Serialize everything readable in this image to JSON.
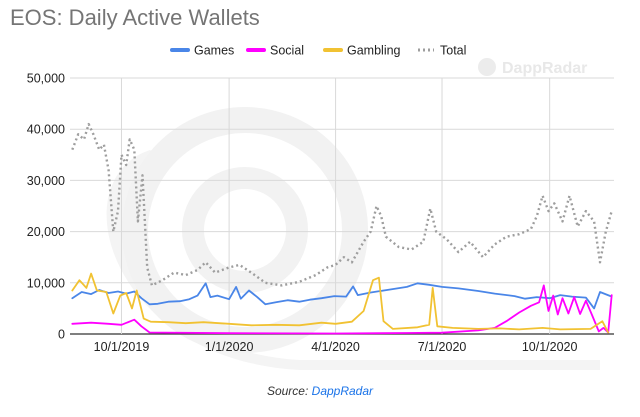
{
  "chart_data": {
    "type": "line",
    "title": "EOS: Daily Active Wallets",
    "watermark": "DappRadar",
    "legend_position": "top",
    "grid": true,
    "ylim": [
      0,
      50000
    ],
    "y_ticks": [
      "0",
      "10,000",
      "20,000",
      "30,000",
      "40,000",
      "50,000"
    ],
    "y_tick_values": [
      0,
      10000,
      20000,
      30000,
      40000,
      50000
    ],
    "xlim": [
      "2019-08-18",
      "2020-11-25"
    ],
    "x_ticks": [
      "10/1/2019",
      "1/1/2020",
      "4/1/2020",
      "7/1/2020",
      "10/1/2020"
    ],
    "x_tick_dates": [
      "2019-10-01",
      "2020-01-01",
      "2020-04-01",
      "2020-07-01",
      "2020-10-01"
    ],
    "series": [
      {
        "name": "Games",
        "color": "#4a86e8",
        "style": "solid",
        "points": [
          [
            "2019-08-20",
            7000
          ],
          [
            "2019-08-28",
            8200
          ],
          [
            "2019-09-05",
            7800
          ],
          [
            "2019-09-12",
            8600
          ],
          [
            "2019-09-20",
            8000
          ],
          [
            "2019-09-28",
            8300
          ],
          [
            "2019-10-05",
            7900
          ],
          [
            "2019-10-12",
            8300
          ],
          [
            "2019-10-18",
            7000
          ],
          [
            "2019-10-25",
            5800
          ],
          [
            "2019-11-01",
            5900
          ],
          [
            "2019-11-10",
            6300
          ],
          [
            "2019-11-20",
            6400
          ],
          [
            "2019-11-28",
            6800
          ],
          [
            "2019-12-05",
            7500
          ],
          [
            "2019-12-12",
            9900
          ],
          [
            "2019-12-16",
            7200
          ],
          [
            "2019-12-22",
            7500
          ],
          [
            "2020-01-01",
            6800
          ],
          [
            "2020-01-07",
            9200
          ],
          [
            "2020-01-11",
            6900
          ],
          [
            "2020-01-18",
            8500
          ],
          [
            "2020-01-25",
            7200
          ],
          [
            "2020-02-01",
            5800
          ],
          [
            "2020-02-10",
            6200
          ],
          [
            "2020-02-20",
            6600
          ],
          [
            "2020-03-01",
            6300
          ],
          [
            "2020-03-10",
            6700
          ],
          [
            "2020-03-20",
            7000
          ],
          [
            "2020-03-31",
            7400
          ],
          [
            "2020-04-10",
            7300
          ],
          [
            "2020-04-16",
            9300
          ],
          [
            "2020-04-20",
            7600
          ],
          [
            "2020-05-01",
            8100
          ],
          [
            "2020-05-15",
            8600
          ],
          [
            "2020-06-01",
            9200
          ],
          [
            "2020-06-10",
            9900
          ],
          [
            "2020-06-20",
            9600
          ],
          [
            "2020-07-01",
            9200
          ],
          [
            "2020-07-15",
            8900
          ],
          [
            "2020-08-01",
            8400
          ],
          [
            "2020-08-15",
            7900
          ],
          [
            "2020-09-01",
            7400
          ],
          [
            "2020-09-10",
            6900
          ],
          [
            "2020-09-20",
            7200
          ],
          [
            "2020-10-01",
            7000
          ],
          [
            "2020-10-10",
            7600
          ],
          [
            "2020-10-20",
            7300
          ],
          [
            "2020-11-01",
            7100
          ],
          [
            "2020-11-08",
            5000
          ],
          [
            "2020-11-13",
            8200
          ],
          [
            "2020-11-22",
            7400
          ]
        ]
      },
      {
        "name": "Social",
        "color": "#ff00ff",
        "style": "solid",
        "points": [
          [
            "2019-08-20",
            2000
          ],
          [
            "2019-09-05",
            2200
          ],
          [
            "2019-09-20",
            2000
          ],
          [
            "2019-10-01",
            1800
          ],
          [
            "2019-10-12",
            2800
          ],
          [
            "2019-10-18",
            1500
          ],
          [
            "2019-10-25",
            300
          ],
          [
            "2020-01-01",
            150
          ],
          [
            "2020-04-01",
            100
          ],
          [
            "2020-06-01",
            200
          ],
          [
            "2020-07-01",
            250
          ],
          [
            "2020-08-01",
            700
          ],
          [
            "2020-08-15",
            1200
          ],
          [
            "2020-08-25",
            2500
          ],
          [
            "2020-09-05",
            4200
          ],
          [
            "2020-09-15",
            5500
          ],
          [
            "2020-09-22",
            6200
          ],
          [
            "2020-09-26",
            9500
          ],
          [
            "2020-09-30",
            4500
          ],
          [
            "2020-10-04",
            7500
          ],
          [
            "2020-10-08",
            3800
          ],
          [
            "2020-10-12",
            7000
          ],
          [
            "2020-10-17",
            4000
          ],
          [
            "2020-10-22",
            7200
          ],
          [
            "2020-10-27",
            3900
          ],
          [
            "2020-11-01",
            6500
          ],
          [
            "2020-11-06",
            3800
          ],
          [
            "2020-11-12",
            500
          ],
          [
            "2020-11-16",
            1200
          ],
          [
            "2020-11-20",
            300
          ],
          [
            "2020-11-23",
            7600
          ]
        ]
      },
      {
        "name": "Gambling",
        "color": "#f1c232",
        "style": "solid",
        "points": [
          [
            "2019-08-20",
            8500
          ],
          [
            "2019-08-26",
            10500
          ],
          [
            "2019-09-01",
            9000
          ],
          [
            "2019-09-05",
            11800
          ],
          [
            "2019-09-10",
            8500
          ],
          [
            "2019-09-18",
            8200
          ],
          [
            "2019-09-24",
            4000
          ],
          [
            "2019-09-30",
            7500
          ],
          [
            "2019-10-05",
            8000
          ],
          [
            "2019-10-10",
            5000
          ],
          [
            "2019-10-14",
            8500
          ],
          [
            "2019-10-20",
            3000
          ],
          [
            "2019-10-26",
            2400
          ],
          [
            "2019-11-10",
            2300
          ],
          [
            "2019-11-25",
            2100
          ],
          [
            "2019-12-10",
            2300
          ],
          [
            "2020-01-01",
            2000
          ],
          [
            "2020-01-20",
            1700
          ],
          [
            "2020-02-10",
            1800
          ],
          [
            "2020-03-01",
            1700
          ],
          [
            "2020-03-20",
            2200
          ],
          [
            "2020-04-01",
            2000
          ],
          [
            "2020-04-15",
            2400
          ],
          [
            "2020-04-25",
            4500
          ],
          [
            "2020-05-03",
            10500
          ],
          [
            "2020-05-08",
            11000
          ],
          [
            "2020-05-12",
            2500
          ],
          [
            "2020-05-20",
            1000
          ],
          [
            "2020-06-10",
            1300
          ],
          [
            "2020-06-20",
            1800
          ],
          [
            "2020-06-23",
            9000
          ],
          [
            "2020-06-27",
            1500
          ],
          [
            "2020-07-10",
            1200
          ],
          [
            "2020-08-01",
            1000
          ],
          [
            "2020-08-20",
            1100
          ],
          [
            "2020-09-05",
            900
          ],
          [
            "2020-09-25",
            1200
          ],
          [
            "2020-10-10",
            900
          ],
          [
            "2020-11-05",
            1000
          ],
          [
            "2020-11-15",
            2500
          ],
          [
            "2020-11-20",
            300
          ]
        ]
      },
      {
        "name": "Total",
        "color": "#9e9e9e",
        "style": "dotted",
        "points": [
          [
            "2019-08-20",
            36000
          ],
          [
            "2019-08-25",
            39000
          ],
          [
            "2019-08-30",
            38000
          ],
          [
            "2019-09-03",
            41000
          ],
          [
            "2019-09-07",
            39000
          ],
          [
            "2019-09-12",
            36000
          ],
          [
            "2019-09-16",
            37000
          ],
          [
            "2019-09-20",
            32000
          ],
          [
            "2019-09-24",
            20000
          ],
          [
            "2019-09-28",
            24000
          ],
          [
            "2019-10-01",
            35000
          ],
          [
            "2019-10-05",
            33000
          ],
          [
            "2019-10-08",
            38000
          ],
          [
            "2019-10-12",
            36000
          ],
          [
            "2019-10-15",
            22000
          ],
          [
            "2019-10-19",
            31000
          ],
          [
            "2019-10-23",
            13000
          ],
          [
            "2019-10-27",
            9500
          ],
          [
            "2019-11-05",
            10500
          ],
          [
            "2019-11-15",
            12000
          ],
          [
            "2019-11-25",
            11500
          ],
          [
            "2019-12-05",
            12500
          ],
          [
            "2019-12-12",
            14000
          ],
          [
            "2019-12-20",
            12000
          ],
          [
            "2020-01-01",
            13000
          ],
          [
            "2020-01-10",
            13500
          ],
          [
            "2020-01-20",
            12000
          ],
          [
            "2020-02-01",
            10000
          ],
          [
            "2020-02-15",
            9500
          ],
          [
            "2020-03-01",
            10200
          ],
          [
            "2020-03-15",
            11500
          ],
          [
            "2020-03-25",
            13000
          ],
          [
            "2020-04-01",
            13500
          ],
          [
            "2020-04-08",
            15000
          ],
          [
            "2020-04-15",
            14000
          ],
          [
            "2020-04-25",
            18000
          ],
          [
            "2020-05-01",
            20000
          ],
          [
            "2020-05-06",
            25000
          ],
          [
            "2020-05-10",
            23000
          ],
          [
            "2020-05-14",
            19000
          ],
          [
            "2020-05-25",
            17000
          ],
          [
            "2020-06-05",
            16500
          ],
          [
            "2020-06-15",
            18000
          ],
          [
            "2020-06-21",
            24500
          ],
          [
            "2020-06-26",
            20000
          ],
          [
            "2020-07-05",
            18500
          ],
          [
            "2020-07-15",
            16000
          ],
          [
            "2020-07-25",
            18000
          ],
          [
            "2020-08-05",
            15000
          ],
          [
            "2020-08-15",
            17500
          ],
          [
            "2020-08-25",
            19000
          ],
          [
            "2020-09-05",
            19500
          ],
          [
            "2020-09-15",
            20500
          ],
          [
            "2020-09-20",
            23000
          ],
          [
            "2020-09-25",
            27000
          ],
          [
            "2020-09-30",
            24000
          ],
          [
            "2020-10-05",
            25500
          ],
          [
            "2020-10-12",
            22000
          ],
          [
            "2020-10-18",
            27000
          ],
          [
            "2020-10-25",
            21000
          ],
          [
            "2020-11-01",
            24000
          ],
          [
            "2020-11-08",
            22000
          ],
          [
            "2020-11-13",
            14000
          ],
          [
            "2020-11-18",
            20000
          ],
          [
            "2020-11-23",
            24000
          ]
        ]
      }
    ]
  },
  "source": {
    "prefix": "Source: ",
    "link_text": "DappRadar"
  }
}
